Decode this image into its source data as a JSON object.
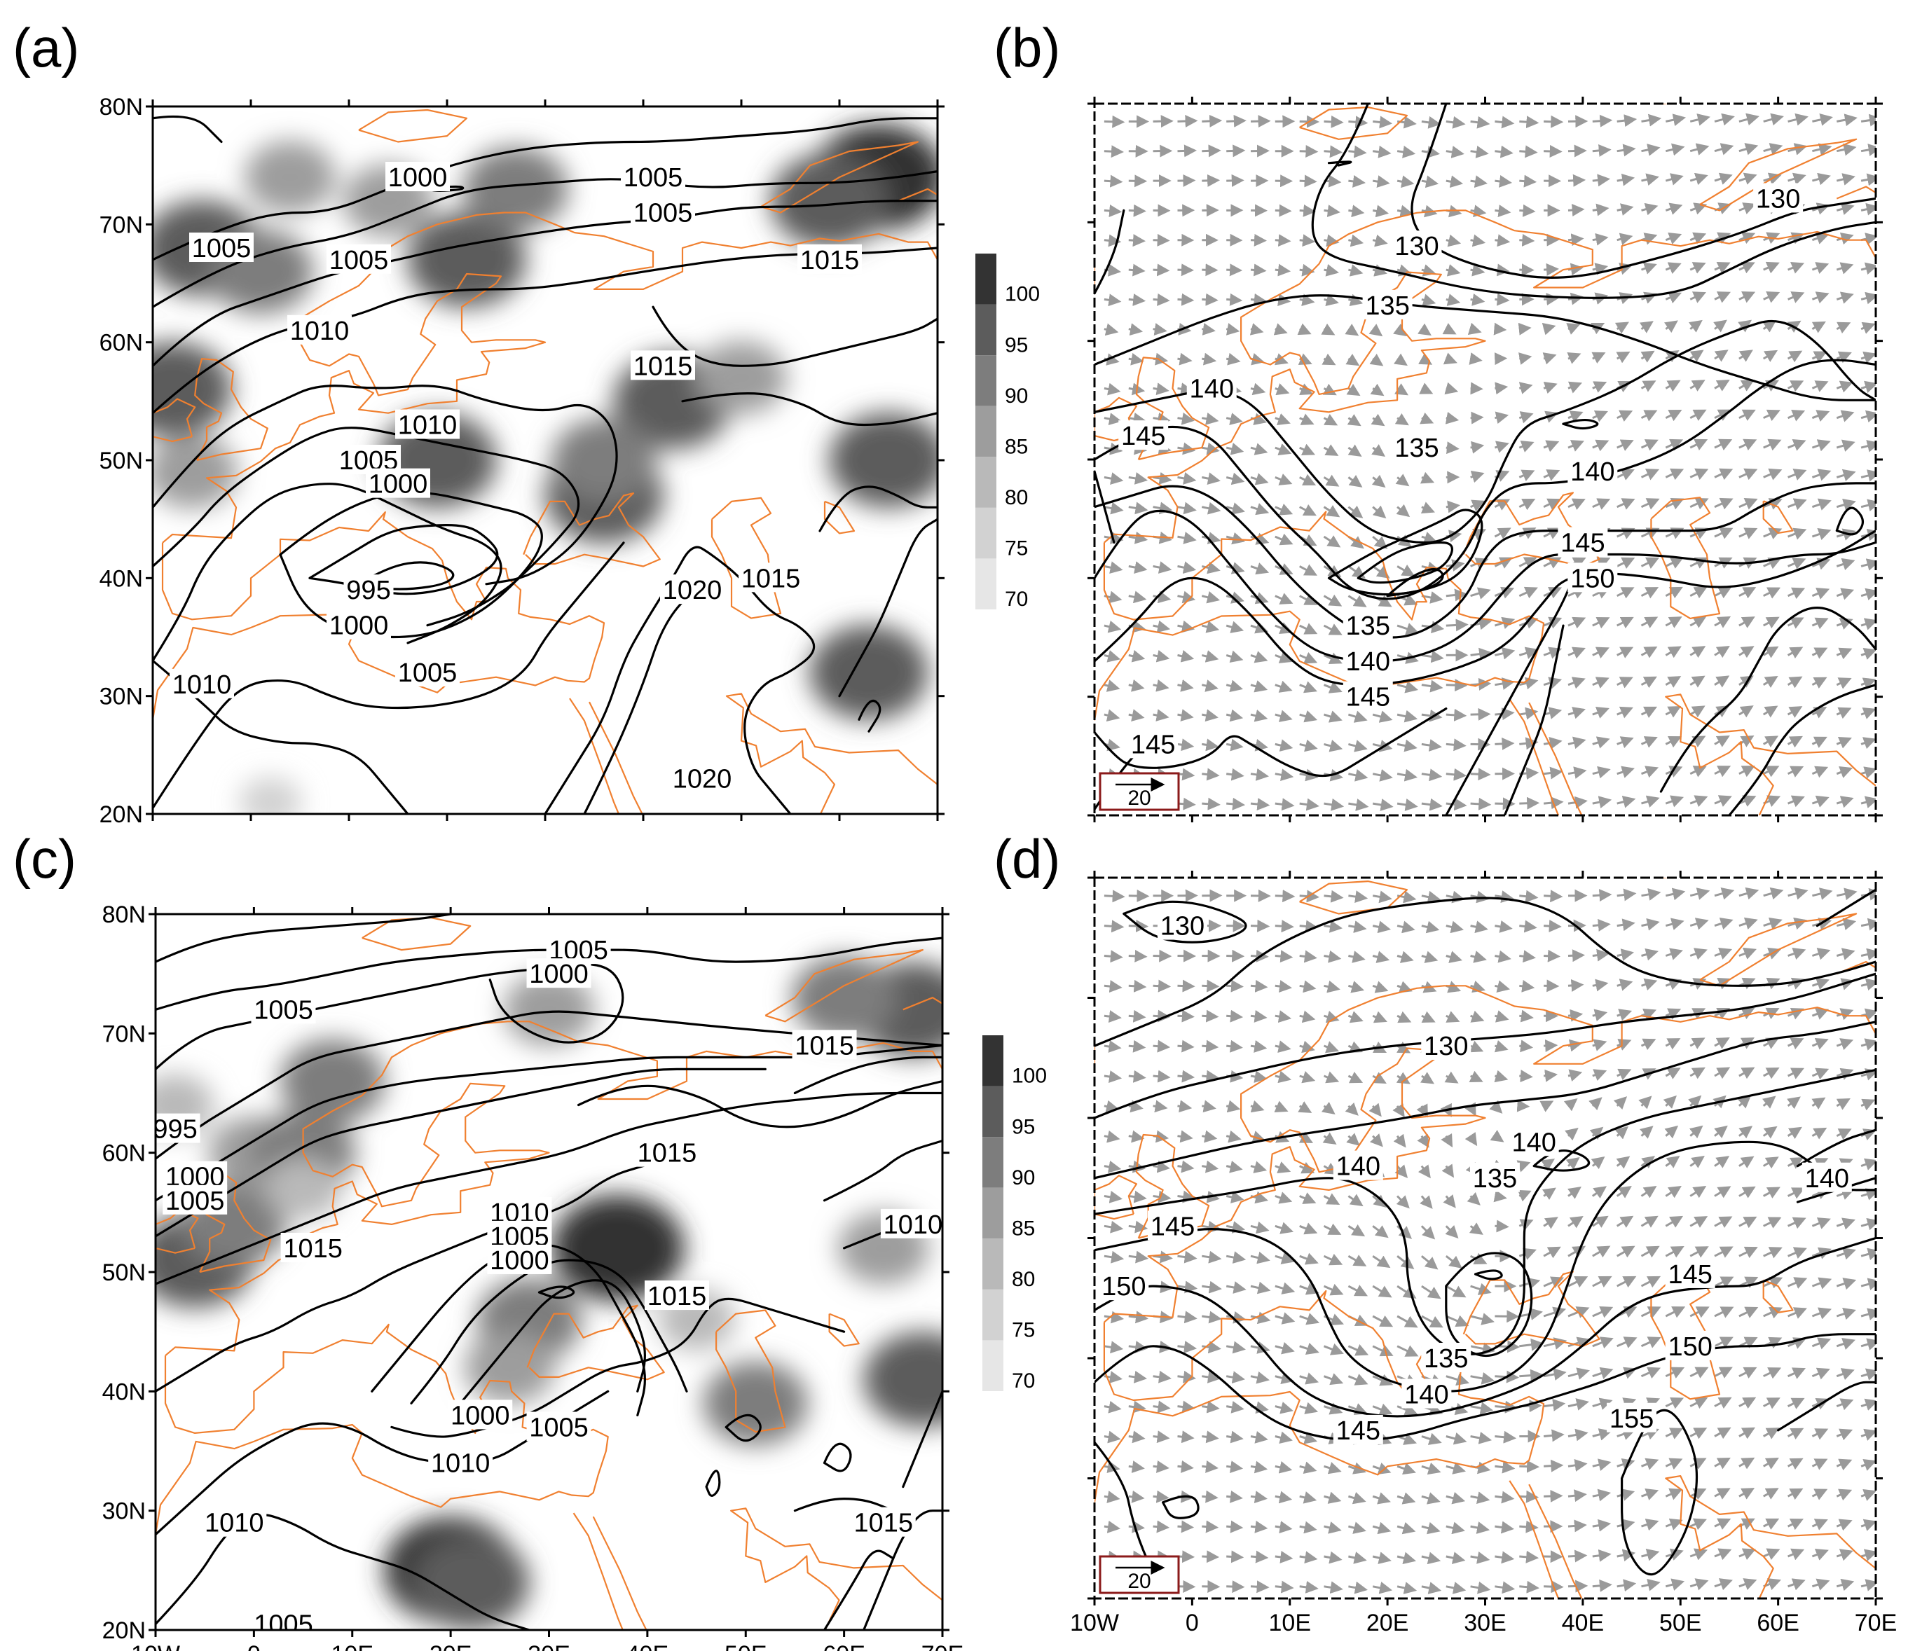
{
  "panels": [
    {
      "id": "a",
      "label": "(a)",
      "kind": "slp",
      "show_lat_ticks": true,
      "show_lon_ticks": false,
      "contour_labels": [
        {
          "text": "1000",
          "lon": 17,
          "lat": 74
        },
        {
          "text": "1005",
          "lon": 41,
          "lat": 74
        },
        {
          "text": "1005",
          "lon": 42,
          "lat": 71
        },
        {
          "text": "1005",
          "lon": -3,
          "lat": 68
        },
        {
          "text": "1005",
          "lon": 11,
          "lat": 67
        },
        {
          "text": "1015",
          "lon": 59,
          "lat": 67
        },
        {
          "text": "1010",
          "lon": 7,
          "lat": 61
        },
        {
          "text": "1015",
          "lon": 42,
          "lat": 58
        },
        {
          "text": "1010",
          "lon": 18,
          "lat": 53
        },
        {
          "text": "1005",
          "lon": 12,
          "lat": 50
        },
        {
          "text": "1000",
          "lon": 15,
          "lat": 48
        },
        {
          "text": "995",
          "lon": 12,
          "lat": 39
        },
        {
          "text": "1000",
          "lon": 11,
          "lat": 36
        },
        {
          "text": "1005",
          "lon": 18,
          "lat": 32
        },
        {
          "text": "1020",
          "lon": 45,
          "lat": 39
        },
        {
          "text": "1015",
          "lon": 53,
          "lat": 40
        },
        {
          "text": "1010",
          "lon": -5,
          "lat": 31
        },
        {
          "text": "1020",
          "lon": 46,
          "lat": 23
        }
      ],
      "shaded_patches": [
        {
          "lon": 19,
          "lat": 50,
          "level": 95
        },
        {
          "lon": 36,
          "lat": 47,
          "level": 95
        },
        {
          "lon": -5,
          "lat": 68,
          "level": 95
        },
        {
          "lon": 1,
          "lat": 66,
          "level": 90
        },
        {
          "lon": -8,
          "lat": 56,
          "level": 95
        },
        {
          "lon": -6,
          "lat": 49,
          "level": 85
        },
        {
          "lon": 14,
          "lat": 72,
          "level": 85
        },
        {
          "lon": 22,
          "lat": 67,
          "level": 95
        },
        {
          "lon": 27,
          "lat": 73,
          "level": 90
        },
        {
          "lon": 4,
          "lat": 74,
          "level": 85
        },
        {
          "lon": 64,
          "lat": 74,
          "level": 100
        },
        {
          "lon": 59,
          "lat": 72,
          "level": 95
        },
        {
          "lon": 43,
          "lat": 55,
          "level": 95
        },
        {
          "lon": 50,
          "lat": 57,
          "level": 85
        },
        {
          "lon": 65,
          "lat": 50,
          "level": 95
        },
        {
          "lon": 63,
          "lat": 32,
          "level": 95
        },
        {
          "lon": 2,
          "lat": 21,
          "level": 75
        },
        {
          "lon": 36,
          "lat": 50,
          "level": 90
        }
      ]
    },
    {
      "id": "b",
      "label": "(b)",
      "kind": "wind",
      "show_lat_ticks": false,
      "show_lon_ticks": false,
      "reference_vector_label": "20",
      "contour_labels": [
        {
          "text": "130",
          "lon": 60,
          "lat": 72
        },
        {
          "text": "130",
          "lon": 23,
          "lat": 68
        },
        {
          "text": "135",
          "lon": 20,
          "lat": 63
        },
        {
          "text": "140",
          "lon": 2,
          "lat": 56
        },
        {
          "text": "145",
          "lon": -5,
          "lat": 52
        },
        {
          "text": "135",
          "lon": 23,
          "lat": 51
        },
        {
          "text": "140",
          "lon": 41,
          "lat": 49
        },
        {
          "text": "145",
          "lon": 40,
          "lat": 43
        },
        {
          "text": "150",
          "lon": 41,
          "lat": 40
        },
        {
          "text": "135",
          "lon": 18,
          "lat": 36
        },
        {
          "text": "140",
          "lon": 18,
          "lat": 33
        },
        {
          "text": "145",
          "lon": 18,
          "lat": 30
        },
        {
          "text": "145",
          "lon": -4,
          "lat": 26
        }
      ]
    },
    {
      "id": "c",
      "label": "(c)",
      "kind": "slp",
      "show_lat_ticks": true,
      "show_lon_ticks": true,
      "contour_labels": [
        {
          "text": "1005",
          "lon": 33,
          "lat": 77
        },
        {
          "text": "1000",
          "lon": 31,
          "lat": 75
        },
        {
          "text": "1005",
          "lon": 3,
          "lat": 72
        },
        {
          "text": "1015",
          "lon": 58,
          "lat": 69
        },
        {
          "text": "995",
          "lon": -8,
          "lat": 62
        },
        {
          "text": "1000",
          "lon": -6,
          "lat": 58
        },
        {
          "text": "1005",
          "lon": -6,
          "lat": 56
        },
        {
          "text": "1015",
          "lon": 42,
          "lat": 60
        },
        {
          "text": "1015",
          "lon": 6,
          "lat": 52
        },
        {
          "text": "1010",
          "lon": 27,
          "lat": 55
        },
        {
          "text": "1005",
          "lon": 27,
          "lat": 53
        },
        {
          "text": "1000",
          "lon": 27,
          "lat": 51
        },
        {
          "text": "1010",
          "lon": 67,
          "lat": 54
        },
        {
          "text": "1015",
          "lon": 43,
          "lat": 48
        },
        {
          "text": "1000",
          "lon": 23,
          "lat": 38
        },
        {
          "text": "1005",
          "lon": 31,
          "lat": 37
        },
        {
          "text": "1010",
          "lon": 21,
          "lat": 34
        },
        {
          "text": "1010",
          "lon": -2,
          "lat": 29
        },
        {
          "text": "1015",
          "lon": 64,
          "lat": 29
        },
        {
          "text": "1005",
          "lon": 3,
          "lat": 20.5
        }
      ],
      "shaded_patches": [
        {
          "lon": -6,
          "lat": 51,
          "level": 95
        },
        {
          "lon": -2,
          "lat": 54,
          "level": 90
        },
        {
          "lon": 0,
          "lat": 60,
          "level": 85
        },
        {
          "lon": 5,
          "lat": 60,
          "level": 90
        },
        {
          "lon": 8,
          "lat": 66,
          "level": 90
        },
        {
          "lon": -8,
          "lat": 64,
          "level": 80
        },
        {
          "lon": 5,
          "lat": 57,
          "level": 80
        },
        {
          "lon": 30,
          "lat": 72,
          "level": 85
        },
        {
          "lon": 37,
          "lat": 52,
          "level": 100
        },
        {
          "lon": 28,
          "lat": 46,
          "level": 90
        },
        {
          "lon": 26,
          "lat": 42,
          "level": 85
        },
        {
          "lon": 67,
          "lat": 72,
          "level": 95
        },
        {
          "lon": 60,
          "lat": 73,
          "level": 90
        },
        {
          "lon": 68,
          "lat": 41,
          "level": 95
        },
        {
          "lon": 20,
          "lat": 25,
          "level": 100
        },
        {
          "lon": 22,
          "lat": 24,
          "level": 95
        },
        {
          "lon": 51,
          "lat": 39,
          "level": 90
        },
        {
          "lon": 64,
          "lat": 52,
          "level": 85
        },
        {
          "lon": 45,
          "lat": 46,
          "level": 80
        }
      ]
    },
    {
      "id": "d",
      "label": "(d)",
      "kind": "wind",
      "show_lat_ticks": false,
      "show_lon_ticks": true,
      "reference_vector_label": "20",
      "contour_labels": [
        {
          "text": "130",
          "lon": -1,
          "lat": 76
        },
        {
          "text": "130",
          "lon": 26,
          "lat": 66
        },
        {
          "text": "140",
          "lon": 35,
          "lat": 58
        },
        {
          "text": "140",
          "lon": 17,
          "lat": 56
        },
        {
          "text": "135",
          "lon": 31,
          "lat": 55
        },
        {
          "text": "140",
          "lon": 65,
          "lat": 55
        },
        {
          "text": "145",
          "lon": -2,
          "lat": 51
        },
        {
          "text": "150",
          "lon": -7,
          "lat": 46
        },
        {
          "text": "145",
          "lon": 51,
          "lat": 47
        },
        {
          "text": "150",
          "lon": 51,
          "lat": 41
        },
        {
          "text": "135",
          "lon": 26,
          "lat": 40
        },
        {
          "text": "140",
          "lon": 24,
          "lat": 37
        },
        {
          "text": "145",
          "lon": 17,
          "lat": 34
        },
        {
          "text": "155",
          "lon": 45,
          "lat": 35
        }
      ]
    }
  ],
  "axes": {
    "lat_ticks": [
      "80N",
      "70N",
      "60N",
      "50N",
      "40N",
      "30N",
      "20N"
    ],
    "lon_ticks": [
      "10W",
      "0",
      "10E",
      "20E",
      "30E",
      "40E",
      "50E",
      "60E",
      "70E"
    ],
    "lon_range": [
      -10,
      70
    ],
    "lat_range": [
      20,
      80
    ]
  },
  "colorbars": [
    {
      "id": "cb-a",
      "ticks": [
        "100",
        "95",
        "90",
        "85",
        "80",
        "75",
        "70"
      ]
    },
    {
      "id": "cb-c",
      "ticks": [
        "100",
        "95",
        "90",
        "85",
        "80",
        "75",
        "70"
      ]
    }
  ],
  "colors": {
    "coastline": "#f08030",
    "contour": "#000000",
    "vector": "#9a9a9a",
    "refbox_border": "#8b1a1a",
    "shade_70": "#e6e6e6",
    "shade_75": "#d2d2d2",
    "shade_80": "#b9b9b9",
    "shade_85": "#9d9d9d",
    "shade_90": "#7d7d7d",
    "shade_95": "#5c5c5c",
    "shade_100": "#333333"
  }
}
